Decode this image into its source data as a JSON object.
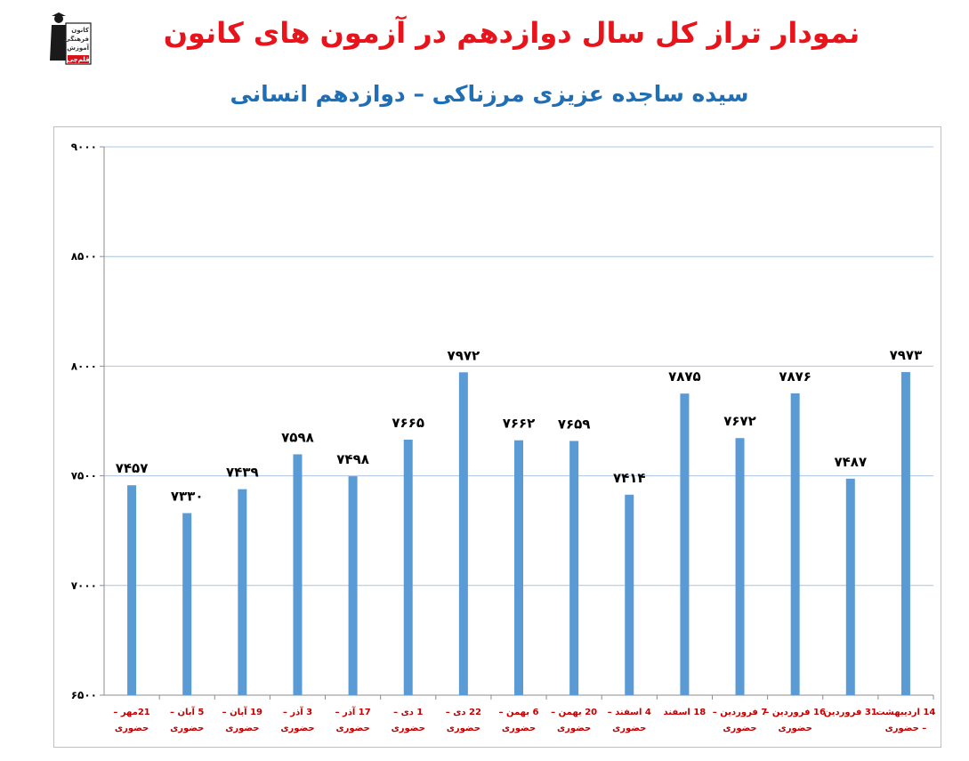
{
  "header": {
    "title": "نمودار تراز کل سال دوازدهم در آزمون های کانون",
    "subtitle": "سیده ساجده عزیزی مرزناکی – دوازدهم انسانی"
  },
  "logo": {
    "lines": [
      "کانون",
      "فرهنگی",
      "آموزش"
    ],
    "badge": "قلم‌چی"
  },
  "colors": {
    "title": "#e8141b",
    "subtitle": "#1f6fb6",
    "bar": "#5b9bd5",
    "grid": "#a9c4e4",
    "xlabel": "#c00000"
  },
  "chart_data": {
    "type": "bar",
    "categories": [
      [
        "21مهر –",
        "حضوری"
      ],
      [
        "5 آبان –",
        "حضوری"
      ],
      [
        "19 آبان –",
        "حضوری"
      ],
      [
        "3 آذر –",
        "حضوری"
      ],
      [
        "17 آذر –",
        "حضوری"
      ],
      [
        "1 دی –",
        "حضوری"
      ],
      [
        "22 دی –",
        "حضوری"
      ],
      [
        "6 بهمن –",
        "حضوری"
      ],
      [
        "20 بهمن –",
        "حضوری"
      ],
      [
        "4 اسفند –",
        "حضوری"
      ],
      [
        "18 اسفند",
        ""
      ],
      [
        "7 فروردین –",
        "حضوری"
      ],
      [
        "16 فروردین –",
        "حضوری"
      ],
      [
        "31 فروردین",
        ""
      ],
      [
        "14 اردیبهشت",
        "– حضوری"
      ]
    ],
    "values": [
      7457,
      7330,
      7439,
      7598,
      7498,
      7665,
      7972,
      7662,
      7659,
      7414,
      7875,
      7672,
      7876,
      7487,
      7973
    ],
    "value_labels": [
      "۷۴۵۷",
      "۷۳۳۰",
      "۷۴۳۹",
      "۷۵۹۸",
      "۷۴۹۸",
      "۷۶۶۵",
      "۷۹۷۲",
      "۷۶۶۲",
      "۷۶۵۹",
      "۷۴۱۴",
      "۷۸۷۵",
      "۷۶۷۲",
      "۷۸۷۶",
      "۷۴۸۷",
      "۷۹۷۳"
    ],
    "ylim": [
      6500,
      9000
    ],
    "yticks": [
      6500,
      7000,
      7500,
      8000,
      8500,
      9000
    ],
    "ytick_labels": [
      "۶۵۰۰",
      "۷۰۰۰",
      "۷۵۰۰",
      "۸۰۰۰",
      "۸۵۰۰",
      "۹۰۰۰"
    ],
    "grid": true,
    "legend": "none"
  }
}
